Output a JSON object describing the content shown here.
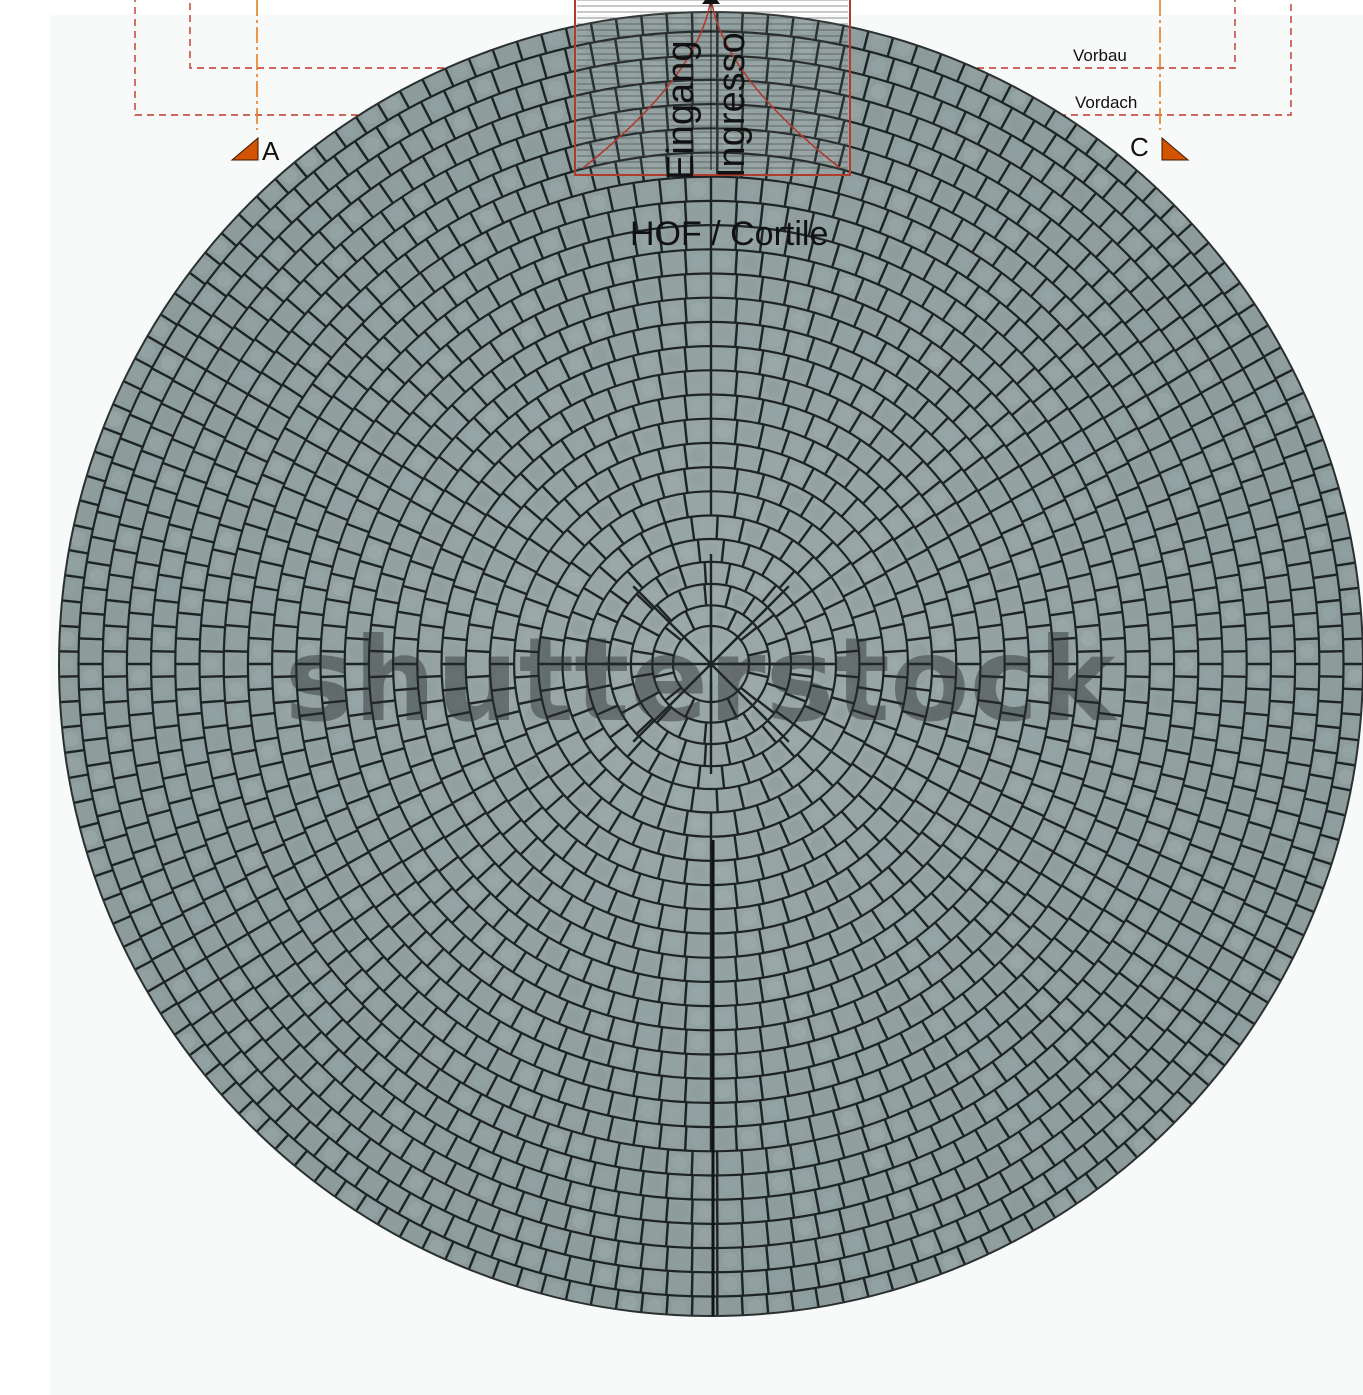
{
  "labels": {
    "vorbau": "Vorbau",
    "vordach": "Vordach",
    "section_a": "A",
    "section_c": "C",
    "entrance_de": "Eingang",
    "entrance_it": "Ingresso",
    "courtyard": "HOF / Cortile"
  },
  "watermark": "shutterstock",
  "colors": {
    "dashed_outline": "#c0392b",
    "axis_line": "#e67e22",
    "entrance_frame": "#b03a2e",
    "section_marker": "#d35400",
    "paving_base": "#8a9a9a",
    "paving_joint": "#1e2424"
  },
  "icons": {
    "section_marker": "triangle-icon"
  }
}
